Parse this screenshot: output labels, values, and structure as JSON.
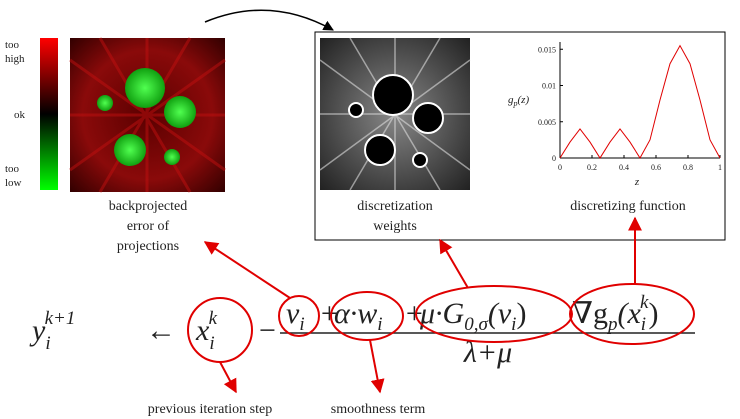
{
  "colorbar": {
    "top": [
      "too",
      "high"
    ],
    "middle": "ok",
    "bottom": [
      "too",
      "low"
    ]
  },
  "error_caption": [
    "backprojected",
    "error of",
    "projections"
  ],
  "weights_caption": [
    "discretization",
    "weights"
  ],
  "function_caption": "discretizing function",
  "plot": {
    "y_label": {
      "base": "g",
      "sub": "p",
      "rest": "(z)"
    },
    "x_label": "z",
    "xlim": [
      0,
      1
    ],
    "ylim": [
      0,
      0.016
    ],
    "xticks": [
      0,
      0.2,
      0.4,
      0.6,
      0.8,
      1
    ],
    "yticks": [
      0,
      0.005,
      0.01,
      0.015
    ],
    "color": "#e00000",
    "x": [
      0,
      0.0625,
      0.125,
      0.1875,
      0.25,
      0.3125,
      0.375,
      0.4375,
      0.5,
      0.5625,
      0.625,
      0.6875,
      0.75,
      0.8125,
      0.875,
      0.9375,
      1
    ],
    "values": [
      0,
      0.0022,
      0.004,
      0.0022,
      0,
      0.0022,
      0.004,
      0.0022,
      0,
      0.0025,
      0.008,
      0.013,
      0.0155,
      0.013,
      0.008,
      0.0025,
      0
    ]
  },
  "formula": {
    "lhs": {
      "base": "y",
      "sub": "i",
      "sup": "k+1"
    },
    "arrow": "←",
    "x": {
      "base": "x",
      "sub": "i",
      "sup": "k"
    },
    "minus": "−",
    "v": {
      "base": "v",
      "sub": "i"
    },
    "plus1": "+",
    "aw": {
      "base": "α·w",
      "sub": "i"
    },
    "plus2": "+",
    "g": {
      "base": "μ·G",
      "sub": "0,σ",
      "rest": "(v",
      "sub2": "i",
      "close": ")"
    },
    "grad": {
      "base": "∇g",
      "sub": "p",
      "rest": "(x",
      "sub2": "i",
      "sup2": "k",
      "close": ")"
    },
    "denominator": "λ+μ"
  },
  "bottom_labels": {
    "previous": "previous iteration step",
    "smoothness": "smoothness term"
  }
}
